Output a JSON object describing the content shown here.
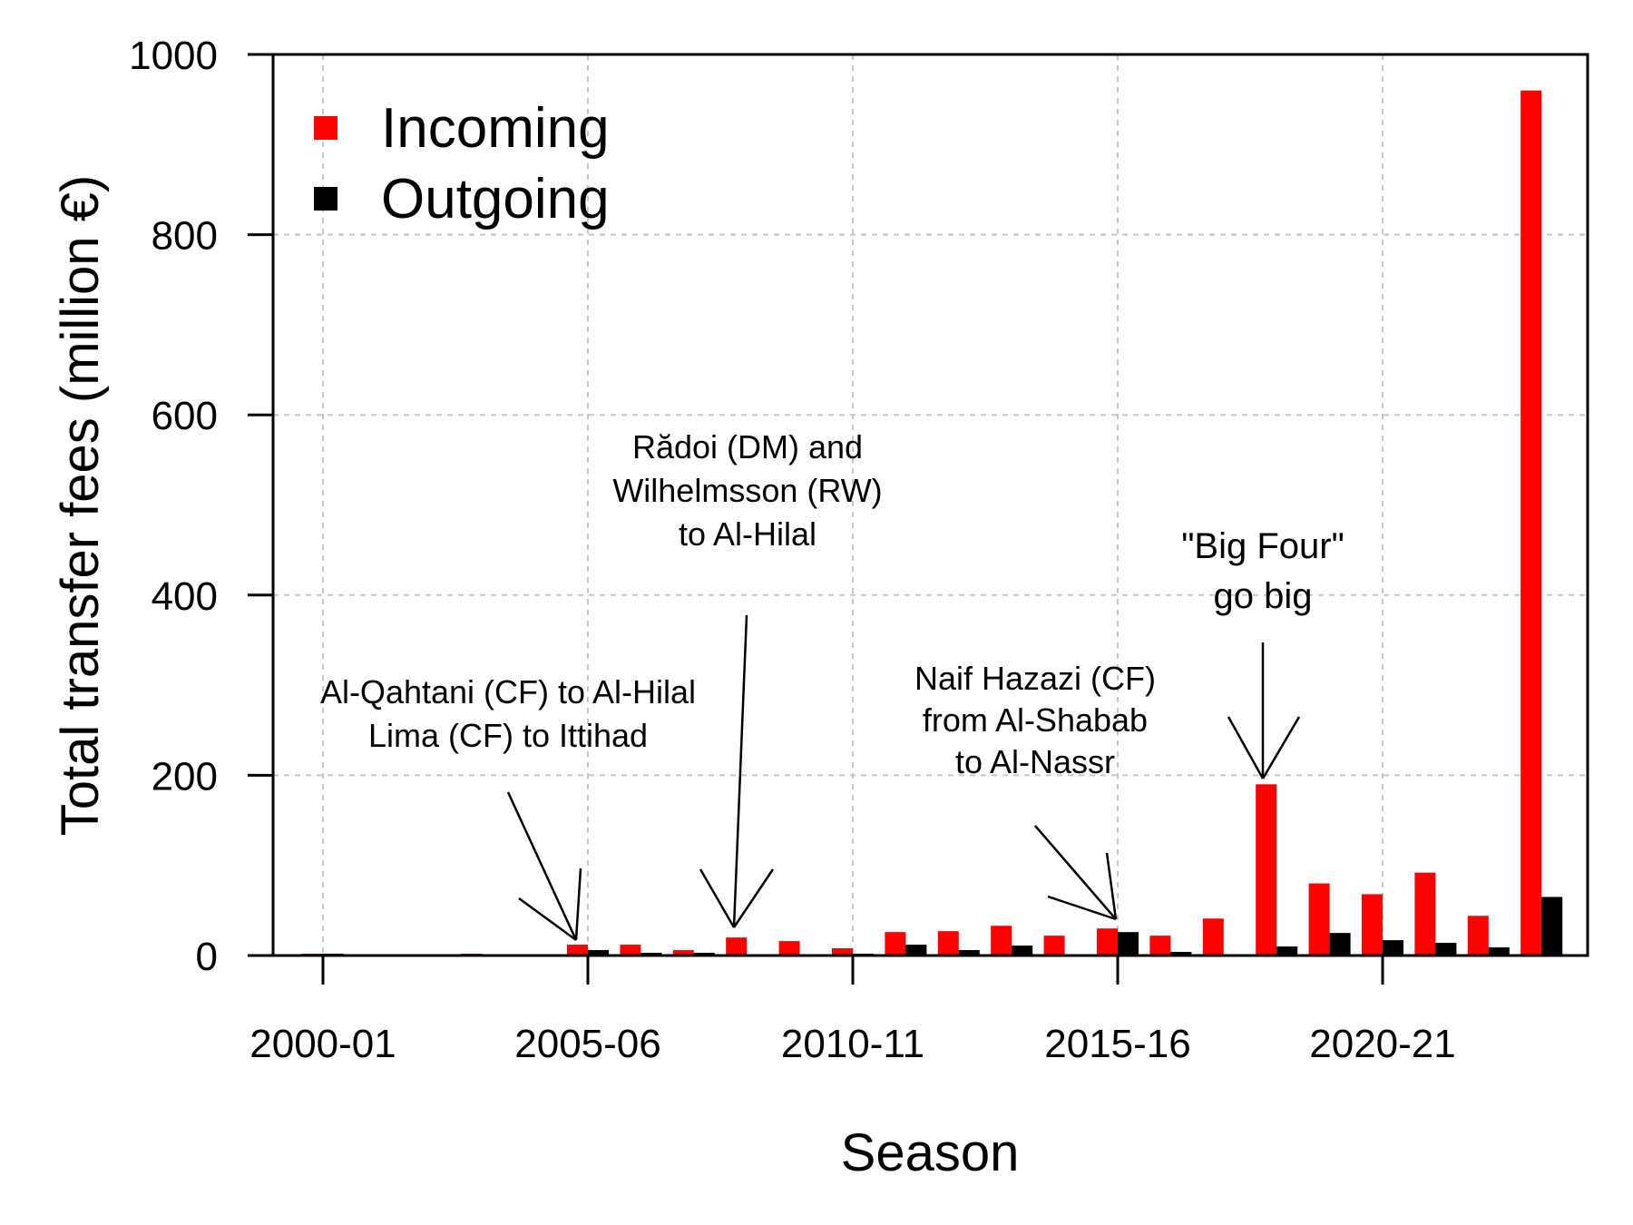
{
  "chart_data": {
    "type": "bar",
    "xlabel": "Season",
    "ylabel": "Total transfer fees (million €)",
    "ylim": [
      0,
      1000
    ],
    "yticks": [
      0,
      200,
      400,
      600,
      800,
      1000
    ],
    "xtick_labels": [
      {
        "season_index": 0,
        "label": "2000-01"
      },
      {
        "season_index": 5,
        "label": "2005-06"
      },
      {
        "season_index": 10,
        "label": "2010-11"
      },
      {
        "season_index": 15,
        "label": "2015-16"
      },
      {
        "season_index": 20,
        "label": "2020-21"
      }
    ],
    "categories": [
      "2000-01",
      "2001-02",
      "2002-03",
      "2003-04",
      "2004-05",
      "2005-06",
      "2006-07",
      "2007-08",
      "2008-09",
      "2009-10",
      "2010-11",
      "2011-12",
      "2012-13",
      "2013-14",
      "2014-15",
      "2015-16",
      "2016-17",
      "2017-18",
      "2018-19",
      "2019-20",
      "2020-21",
      "2021-22",
      "2022-23",
      "2023-24"
    ],
    "series": [
      {
        "name": "Incoming",
        "color": "#ff0000",
        "values": [
          2,
          0.5,
          1.5,
          2,
          0.5,
          12,
          12,
          6,
          20,
          16,
          8,
          26,
          27,
          33,
          22,
          30,
          22,
          41,
          190,
          80,
          68,
          92,
          44,
          960
        ]
      },
      {
        "name": "Outgoing",
        "color": "#000000",
        "values": [
          2,
          0.5,
          0.5,
          0.5,
          0.5,
          6,
          3,
          3,
          1,
          1,
          2,
          12,
          6,
          11,
          1,
          26,
          4,
          1,
          10,
          25,
          17,
          14,
          9,
          65
        ]
      }
    ],
    "grid": true,
    "legend_position": "top-left",
    "annotations": [
      {
        "lines": [
          "Al-Qahtani (CF) to Al-Hilal",
          "Lima (CF) to Ittihad"
        ],
        "target_season_index": 5,
        "target_value": 12
      },
      {
        "lines": [
          "Rădoi (DM) and",
          "Wilhelmsson (RW)",
          "to Al-Hilal"
        ],
        "target_season_index": 8,
        "target_value": 25
      },
      {
        "lines": [
          "Naif Hazazi (CF)",
          "from Al-Shabab",
          "to Al-Nassr"
        ],
        "target_season_index": 15,
        "target_value": 30
      },
      {
        "lines": [
          "\"Big Four\"",
          "go big"
        ],
        "target_season_index": 18,
        "target_value": 190
      }
    ]
  }
}
